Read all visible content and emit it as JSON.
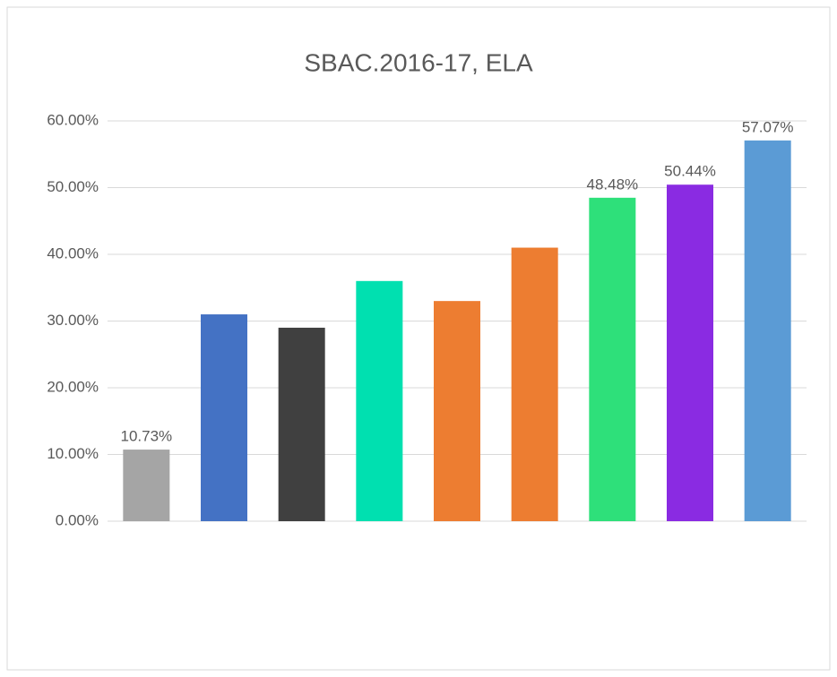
{
  "chart_data": {
    "type": "bar",
    "title": "SBAC.2016-17, ELA",
    "categories": [
      null,
      null,
      null,
      null,
      null,
      null,
      null,
      null,
      null
    ],
    "values": [
      10.73,
      31,
      29,
      36,
      33,
      41,
      48.48,
      50.44,
      57.07
    ],
    "value_labels": [
      "10.73%",
      null,
      null,
      null,
      null,
      null,
      "48.48%",
      "50.44%",
      "57.07%"
    ],
    "colors": [
      "#a5a5a5",
      "#4472c4",
      "#404040",
      "#00e0b0",
      "#ed7d31",
      "#ed7d31",
      "#2ee07a",
      "#8a2be2",
      "#5b9bd5"
    ],
    "ylim": [
      0,
      60
    ],
    "yticks": [
      {
        "value": 0,
        "label": "0.00%"
      },
      {
        "value": 10,
        "label": "10.00%"
      },
      {
        "value": 20,
        "label": "20.00%"
      },
      {
        "value": 30,
        "label": "30.00%"
      },
      {
        "value": 40,
        "label": "40.00%"
      },
      {
        "value": 50,
        "label": "50.00%"
      },
      {
        "value": 60,
        "label": "60.00%"
      }
    ],
    "grid": true
  }
}
